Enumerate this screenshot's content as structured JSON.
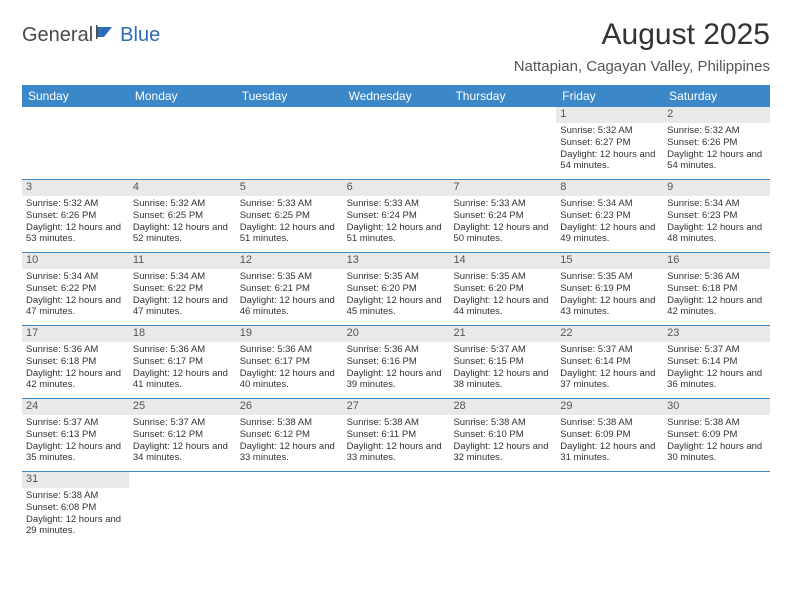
{
  "logo": {
    "text1": "General",
    "text2": "Blue"
  },
  "title": {
    "month_year": "August 2025",
    "location": "Nattapian, Cagayan Valley, Philippines"
  },
  "colors": {
    "header_bg": "#3b87c8",
    "header_text": "#ffffff",
    "daynum_bg": "#e9e9e9",
    "row_border": "#3b87c8",
    "logo_gray": "#4a4a4a",
    "logo_blue": "#2d6bb5"
  },
  "weekdays": [
    "Sunday",
    "Monday",
    "Tuesday",
    "Wednesday",
    "Thursday",
    "Friday",
    "Saturday"
  ],
  "weeks": [
    [
      null,
      null,
      null,
      null,
      null,
      {
        "num": "1",
        "sunrise": "Sunrise: 5:32 AM",
        "sunset": "Sunset: 6:27 PM",
        "daylight": "Daylight: 12 hours and 54 minutes."
      },
      {
        "num": "2",
        "sunrise": "Sunrise: 5:32 AM",
        "sunset": "Sunset: 6:26 PM",
        "daylight": "Daylight: 12 hours and 54 minutes."
      }
    ],
    [
      {
        "num": "3",
        "sunrise": "Sunrise: 5:32 AM",
        "sunset": "Sunset: 6:26 PM",
        "daylight": "Daylight: 12 hours and 53 minutes."
      },
      {
        "num": "4",
        "sunrise": "Sunrise: 5:32 AM",
        "sunset": "Sunset: 6:25 PM",
        "daylight": "Daylight: 12 hours and 52 minutes."
      },
      {
        "num": "5",
        "sunrise": "Sunrise: 5:33 AM",
        "sunset": "Sunset: 6:25 PM",
        "daylight": "Daylight: 12 hours and 51 minutes."
      },
      {
        "num": "6",
        "sunrise": "Sunrise: 5:33 AM",
        "sunset": "Sunset: 6:24 PM",
        "daylight": "Daylight: 12 hours and 51 minutes."
      },
      {
        "num": "7",
        "sunrise": "Sunrise: 5:33 AM",
        "sunset": "Sunset: 6:24 PM",
        "daylight": "Daylight: 12 hours and 50 minutes."
      },
      {
        "num": "8",
        "sunrise": "Sunrise: 5:34 AM",
        "sunset": "Sunset: 6:23 PM",
        "daylight": "Daylight: 12 hours and 49 minutes."
      },
      {
        "num": "9",
        "sunrise": "Sunrise: 5:34 AM",
        "sunset": "Sunset: 6:23 PM",
        "daylight": "Daylight: 12 hours and 48 minutes."
      }
    ],
    [
      {
        "num": "10",
        "sunrise": "Sunrise: 5:34 AM",
        "sunset": "Sunset: 6:22 PM",
        "daylight": "Daylight: 12 hours and 47 minutes."
      },
      {
        "num": "11",
        "sunrise": "Sunrise: 5:34 AM",
        "sunset": "Sunset: 6:22 PM",
        "daylight": "Daylight: 12 hours and 47 minutes."
      },
      {
        "num": "12",
        "sunrise": "Sunrise: 5:35 AM",
        "sunset": "Sunset: 6:21 PM",
        "daylight": "Daylight: 12 hours and 46 minutes."
      },
      {
        "num": "13",
        "sunrise": "Sunrise: 5:35 AM",
        "sunset": "Sunset: 6:20 PM",
        "daylight": "Daylight: 12 hours and 45 minutes."
      },
      {
        "num": "14",
        "sunrise": "Sunrise: 5:35 AM",
        "sunset": "Sunset: 6:20 PM",
        "daylight": "Daylight: 12 hours and 44 minutes."
      },
      {
        "num": "15",
        "sunrise": "Sunrise: 5:35 AM",
        "sunset": "Sunset: 6:19 PM",
        "daylight": "Daylight: 12 hours and 43 minutes."
      },
      {
        "num": "16",
        "sunrise": "Sunrise: 5:36 AM",
        "sunset": "Sunset: 6:18 PM",
        "daylight": "Daylight: 12 hours and 42 minutes."
      }
    ],
    [
      {
        "num": "17",
        "sunrise": "Sunrise: 5:36 AM",
        "sunset": "Sunset: 6:18 PM",
        "daylight": "Daylight: 12 hours and 42 minutes."
      },
      {
        "num": "18",
        "sunrise": "Sunrise: 5:36 AM",
        "sunset": "Sunset: 6:17 PM",
        "daylight": "Daylight: 12 hours and 41 minutes."
      },
      {
        "num": "19",
        "sunrise": "Sunrise: 5:36 AM",
        "sunset": "Sunset: 6:17 PM",
        "daylight": "Daylight: 12 hours and 40 minutes."
      },
      {
        "num": "20",
        "sunrise": "Sunrise: 5:36 AM",
        "sunset": "Sunset: 6:16 PM",
        "daylight": "Daylight: 12 hours and 39 minutes."
      },
      {
        "num": "21",
        "sunrise": "Sunrise: 5:37 AM",
        "sunset": "Sunset: 6:15 PM",
        "daylight": "Daylight: 12 hours and 38 minutes."
      },
      {
        "num": "22",
        "sunrise": "Sunrise: 5:37 AM",
        "sunset": "Sunset: 6:14 PM",
        "daylight": "Daylight: 12 hours and 37 minutes."
      },
      {
        "num": "23",
        "sunrise": "Sunrise: 5:37 AM",
        "sunset": "Sunset: 6:14 PM",
        "daylight": "Daylight: 12 hours and 36 minutes."
      }
    ],
    [
      {
        "num": "24",
        "sunrise": "Sunrise: 5:37 AM",
        "sunset": "Sunset: 6:13 PM",
        "daylight": "Daylight: 12 hours and 35 minutes."
      },
      {
        "num": "25",
        "sunrise": "Sunrise: 5:37 AM",
        "sunset": "Sunset: 6:12 PM",
        "daylight": "Daylight: 12 hours and 34 minutes."
      },
      {
        "num": "26",
        "sunrise": "Sunrise: 5:38 AM",
        "sunset": "Sunset: 6:12 PM",
        "daylight": "Daylight: 12 hours and 33 minutes."
      },
      {
        "num": "27",
        "sunrise": "Sunrise: 5:38 AM",
        "sunset": "Sunset: 6:11 PM",
        "daylight": "Daylight: 12 hours and 33 minutes."
      },
      {
        "num": "28",
        "sunrise": "Sunrise: 5:38 AM",
        "sunset": "Sunset: 6:10 PM",
        "daylight": "Daylight: 12 hours and 32 minutes."
      },
      {
        "num": "29",
        "sunrise": "Sunrise: 5:38 AM",
        "sunset": "Sunset: 6:09 PM",
        "daylight": "Daylight: 12 hours and 31 minutes."
      },
      {
        "num": "30",
        "sunrise": "Sunrise: 5:38 AM",
        "sunset": "Sunset: 6:09 PM",
        "daylight": "Daylight: 12 hours and 30 minutes."
      }
    ],
    [
      {
        "num": "31",
        "sunrise": "Sunrise: 5:38 AM",
        "sunset": "Sunset: 6:08 PM",
        "daylight": "Daylight: 12 hours and 29 minutes."
      },
      null,
      null,
      null,
      null,
      null,
      null
    ]
  ]
}
